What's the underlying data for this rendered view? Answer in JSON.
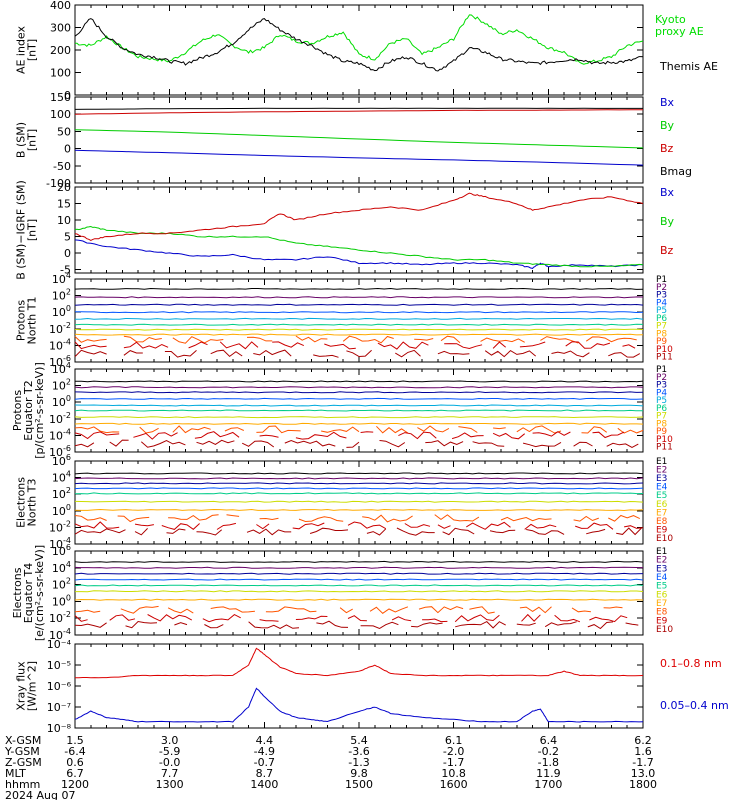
{
  "chart_data": [
    {
      "id": "ae",
      "type": "line",
      "ylabel": [
        "AE index",
        "[nT]"
      ],
      "ylim": [
        0,
        400
      ],
      "yticks": [
        0,
        100,
        200,
        300,
        400
      ],
      "series": [
        {
          "name": "Kyoto proxy AE",
          "color": "#00dd00",
          "label_lines": [
            "Kyoto",
            "proxy AE"
          ],
          "t": [
            1200,
            1210,
            1220,
            1230,
            1240,
            1250,
            1300,
            1310,
            1320,
            1330,
            1340,
            1350,
            1400,
            1410,
            1420,
            1430,
            1440,
            1450,
            1500,
            1510,
            1520,
            1530,
            1540,
            1550,
            1600,
            1610,
            1620,
            1630,
            1640,
            1650,
            1700,
            1710,
            1720,
            1730,
            1740,
            1750,
            1800
          ],
          "v": [
            230,
            220,
            260,
            210,
            170,
            160,
            150,
            190,
            240,
            270,
            220,
            190,
            210,
            270,
            240,
            230,
            260,
            280,
            180,
            160,
            230,
            250,
            180,
            210,
            250,
            360,
            320,
            270,
            290,
            250,
            210,
            190,
            140,
            150,
            170,
            220,
            240
          ]
        },
        {
          "name": "Themis AE",
          "color": "#000000",
          "label_lines": [
            "Themis AE"
          ],
          "t": [
            1200,
            1210,
            1220,
            1230,
            1240,
            1250,
            1300,
            1310,
            1320,
            1330,
            1340,
            1350,
            1400,
            1410,
            1420,
            1430,
            1440,
            1450,
            1500,
            1510,
            1520,
            1530,
            1540,
            1550,
            1600,
            1610,
            1620,
            1630,
            1640,
            1650,
            1700,
            1710,
            1720,
            1730,
            1740,
            1750,
            1800
          ],
          "v": [
            260,
            340,
            260,
            210,
            180,
            170,
            150,
            140,
            165,
            190,
            230,
            290,
            340,
            290,
            250,
            220,
            180,
            150,
            140,
            110,
            150,
            170,
            140,
            110,
            150,
            210,
            190,
            160,
            150,
            140,
            145,
            155,
            160,
            140,
            145,
            150,
            170
          ]
        }
      ]
    },
    {
      "id": "bsm",
      "type": "line",
      "ylabel": [
        "B (SM)",
        "[nT]"
      ],
      "ylim": [
        -100,
        150
      ],
      "yticks": [
        -100,
        -50,
        0,
        50,
        100,
        150
      ],
      "series": [
        {
          "name": "Bx",
          "color": "#0000cc",
          "t": [
            1200,
            1300,
            1400,
            1500,
            1600,
            1700,
            1800
          ],
          "v": [
            -5,
            -12,
            -20,
            -27,
            -33,
            -40,
            -48
          ]
        },
        {
          "name": "By",
          "color": "#00cc00",
          "t": [
            1200,
            1300,
            1400,
            1500,
            1600,
            1700,
            1800
          ],
          "v": [
            55,
            48,
            38,
            28,
            18,
            10,
            2
          ]
        },
        {
          "name": "Bz",
          "color": "#cc0000",
          "t": [
            1200,
            1300,
            1400,
            1500,
            1600,
            1700,
            1800
          ],
          "v": [
            100,
            104,
            107,
            109,
            111,
            112,
            113
          ]
        },
        {
          "name": "Bmag",
          "color": "#000000",
          "t": [
            1200,
            1300,
            1400,
            1500,
            1600,
            1700,
            1800
          ],
          "v": [
            114,
            116,
            117,
            117,
            117,
            117,
            117
          ]
        }
      ]
    },
    {
      "id": "bigrf",
      "type": "line",
      "ylabel": [
        "B (SM)−IGRF (SM)",
        "[nT]"
      ],
      "ylim": [
        -6,
        20
      ],
      "yticks": [
        -5,
        0,
        5,
        10,
        15,
        20
      ],
      "series": [
        {
          "name": "Bx",
          "color": "#0000cc",
          "t": [
            1200,
            1220,
            1240,
            1300,
            1320,
            1340,
            1400,
            1420,
            1440,
            1500,
            1520,
            1540,
            1600,
            1620,
            1640,
            1650,
            1655,
            1700,
            1720,
            1740,
            1800
          ],
          "v": [
            4,
            2,
            1,
            0,
            -1,
            -0.5,
            -2,
            -2,
            -1,
            -3,
            -3,
            -3.5,
            -3,
            -3,
            -3.5,
            -4.5,
            -3,
            -4,
            -3.5,
            -4,
            -3.5
          ]
        },
        {
          "name": "By",
          "color": "#00cc00",
          "t": [
            1200,
            1210,
            1220,
            1240,
            1300,
            1320,
            1340,
            1400,
            1420,
            1440,
            1500,
            1520,
            1540,
            1600,
            1620,
            1640,
            1700,
            1720,
            1740,
            1800
          ],
          "v": [
            7,
            8,
            7,
            6,
            6,
            5,
            5,
            5,
            3,
            2,
            1,
            0,
            -1,
            -2,
            -2,
            -3,
            -3.5,
            -4,
            -4,
            -3.5
          ]
        },
        {
          "name": "Bz",
          "color": "#cc0000",
          "t": [
            1200,
            1210,
            1220,
            1240,
            1300,
            1320,
            1340,
            1400,
            1410,
            1420,
            1440,
            1500,
            1520,
            1540,
            1600,
            1610,
            1620,
            1640,
            1650,
            1700,
            1720,
            1740,
            1800
          ],
          "v": [
            6,
            4,
            5,
            6,
            6,
            7,
            8,
            9,
            12,
            10,
            12,
            13,
            14,
            13,
            16,
            18,
            17,
            15,
            13,
            14,
            16,
            17,
            15
          ]
        }
      ]
    },
    {
      "id": "pnorth",
      "type": "line",
      "log": true,
      "ylabel": [
        "Protons",
        "North T1"
      ],
      "ylim": [
        -6,
        4
      ],
      "yticks": [
        4,
        2,
        0,
        -2,
        -4,
        -6
      ],
      "levels": [
        {
          "name": "P1",
          "color": "#000000",
          "logv": 2.8
        },
        {
          "name": "P2",
          "color": "#660066",
          "logv": 1.8
        },
        {
          "name": "P3",
          "color": "#000099",
          "logv": 0.9
        },
        {
          "name": "P4",
          "color": "#0055ff",
          "logv": 0.0
        },
        {
          "name": "P5",
          "color": "#00aadd",
          "logv": -0.8
        },
        {
          "name": "P6",
          "color": "#00cc88",
          "logv": -1.5
        },
        {
          "name": "P7",
          "color": "#ccdd00",
          "logv": -2.1
        },
        {
          "name": "P8",
          "color": "#ffaa00",
          "logv": -2.7
        },
        {
          "name": "P9",
          "color": "#ff5500",
          "logv": -3.3
        },
        {
          "name": "P10",
          "color": "#cc0000",
          "logv": -4.0
        },
        {
          "name": "P11",
          "color": "#aa0000",
          "logv": -5.0
        }
      ]
    },
    {
      "id": "pequator",
      "type": "line",
      "log": true,
      "ylabel": [
        "Protons",
        "Equator T2",
        "[p/(cm²-s-sr-keV)]"
      ],
      "ylim": [
        -6,
        4
      ],
      "yticks": [
        4,
        2,
        0,
        -2,
        -4,
        -6
      ],
      "levels": [
        {
          "name": "P1",
          "color": "#000000",
          "logv": 2.5
        },
        {
          "name": "P2",
          "color": "#660066",
          "logv": 1.8
        },
        {
          "name": "P3",
          "color": "#000099",
          "logv": 1.2
        },
        {
          "name": "P4",
          "color": "#0055ff",
          "logv": 0.4
        },
        {
          "name": "P5",
          "color": "#00aadd",
          "logv": -0.4
        },
        {
          "name": "P6",
          "color": "#00cc88",
          "logv": -1.0
        },
        {
          "name": "P7",
          "color": "#ccdd00",
          "logv": -1.8
        },
        {
          "name": "P8",
          "color": "#ffaa00",
          "logv": -2.6
        },
        {
          "name": "P9",
          "color": "#ff5500",
          "logv": -3.3
        },
        {
          "name": "P10",
          "color": "#cc0000",
          "logv": -4.0
        },
        {
          "name": "P11",
          "color": "#aa0000",
          "logv": -5.0
        }
      ]
    },
    {
      "id": "enorth",
      "type": "line",
      "log": true,
      "ylabel": [
        "Electrons",
        "North T3"
      ],
      "ylim": [
        -4,
        6
      ],
      "yticks": [
        6,
        4,
        2,
        0,
        -2,
        -4
      ],
      "levels": [
        {
          "name": "E1",
          "color": "#000000",
          "logv": 4.5
        },
        {
          "name": "E2",
          "color": "#660066",
          "logv": 3.9
        },
        {
          "name": "E3",
          "color": "#000099",
          "logv": 3.3
        },
        {
          "name": "E4",
          "color": "#0055ff",
          "logv": 2.7
        },
        {
          "name": "E5",
          "color": "#00cc88",
          "logv": 2.1
        },
        {
          "name": "E6",
          "color": "#ccdd00",
          "logv": 1.1
        },
        {
          "name": "E7",
          "color": "#ffaa00",
          "logv": 0.1
        },
        {
          "name": "E8",
          "color": "#ff5500",
          "logv": -0.9
        },
        {
          "name": "E9",
          "color": "#cc0000",
          "logv": -1.8
        },
        {
          "name": "E10",
          "color": "#aa0000",
          "logv": -2.5
        }
      ]
    },
    {
      "id": "eequator",
      "type": "line",
      "log": true,
      "ylabel": [
        "Electrons",
        "Equator T4",
        "[e/(cm²-s-sr-keV)]"
      ],
      "ylim": [
        -4,
        6
      ],
      "yticks": [
        6,
        4,
        2,
        0,
        -2,
        -4
      ],
      "levels": [
        {
          "name": "E1",
          "color": "#000000",
          "logv": 4.7
        },
        {
          "name": "E2",
          "color": "#660066",
          "logv": 4.0
        },
        {
          "name": "E3",
          "color": "#000099",
          "logv": 3.3
        },
        {
          "name": "E4",
          "color": "#0055ff",
          "logv": 2.6
        },
        {
          "name": "E5",
          "color": "#00cc88",
          "logv": 1.9
        },
        {
          "name": "E6",
          "color": "#ccdd00",
          "logv": 1.2
        },
        {
          "name": "E7",
          "color": "#ffaa00",
          "logv": 0.2
        },
        {
          "name": "E8",
          "color": "#ff5500",
          "logv": -1.0
        },
        {
          "name": "E9",
          "color": "#cc0000",
          "logv": -2.0
        },
        {
          "name": "E10",
          "color": "#aa0000",
          "logv": -2.8
        }
      ]
    },
    {
      "id": "xray",
      "type": "line",
      "log": true,
      "ylabel": [
        "Xray flux",
        "[W/m^2]"
      ],
      "ylim": [
        -8,
        -4
      ],
      "yticks": [
        -8,
        -7,
        -6,
        -5,
        -4
      ],
      "tick_labels": [
        "10⁻⁸",
        "10⁻⁷",
        "10⁻⁶",
        "10⁻⁵",
        "10⁻⁴"
      ],
      "series": [
        {
          "name": "0.1–0.8 nm",
          "color": "#dd0000",
          "t": [
            1200,
            1220,
            1240,
            1300,
            1320,
            1340,
            1350,
            1355,
            1400,
            1410,
            1420,
            1440,
            1500,
            1510,
            1520,
            1540,
            1600,
            1620,
            1640,
            1700,
            1710,
            1720,
            1740,
            1800
          ],
          "lv": [
            -5.6,
            -5.6,
            -5.5,
            -5.5,
            -5.5,
            -5.5,
            -5.0,
            -4.2,
            -4.5,
            -5.1,
            -5.4,
            -5.5,
            -5.3,
            -5.0,
            -5.4,
            -5.5,
            -5.5,
            -5.5,
            -5.5,
            -5.5,
            -5.3,
            -5.5,
            -5.5,
            -5.5
          ]
        },
        {
          "name": "0.05–0.4 nm",
          "color": "#0000cc",
          "t": [
            1200,
            1210,
            1220,
            1230,
            1240,
            1300,
            1320,
            1340,
            1350,
            1355,
            1400,
            1410,
            1420,
            1430,
            1440,
            1500,
            1510,
            1520,
            1540,
            1600,
            1620,
            1640,
            1650,
            1655,
            1700,
            1720,
            1740,
            1800
          ],
          "lv": [
            -7.6,
            -7.2,
            -7.5,
            -7.6,
            -7.7,
            -7.7,
            -7.7,
            -7.7,
            -7.0,
            -6.1,
            -6.5,
            -7.2,
            -7.5,
            -7.6,
            -7.7,
            -7.2,
            -7.0,
            -7.3,
            -7.5,
            -7.6,
            -7.7,
            -7.7,
            -7.2,
            -7.1,
            -7.7,
            -7.7,
            -7.7,
            -7.7
          ]
        }
      ]
    }
  ],
  "ephemeris": {
    "rows": [
      {
        "label": "X-GSM",
        "values": [
          "1.5",
          "3.0",
          "4.4",
          "5.4",
          "6.1",
          "6.4",
          "6.2"
        ]
      },
      {
        "label": "Y-GSM",
        "values": [
          "-6.4",
          "-5.9",
          "-4.9",
          "-3.6",
          "-2.0",
          "-0.2",
          "1.6"
        ]
      },
      {
        "label": "Z-GSM",
        "values": [
          "0.6",
          "-0.0",
          "-0.7",
          "-1.3",
          "-1.7",
          "-1.8",
          "-1.7"
        ]
      },
      {
        "label": "MLT",
        "values": [
          "6.7",
          "7.7",
          "8.7",
          "9.8",
          "10.8",
          "11.9",
          "13.0"
        ]
      },
      {
        "label": "hhmm",
        "values": [
          "1200",
          "1300",
          "1400",
          "1500",
          "1600",
          "1700",
          "1800"
        ]
      }
    ],
    "date": "2024 Aug 07"
  }
}
